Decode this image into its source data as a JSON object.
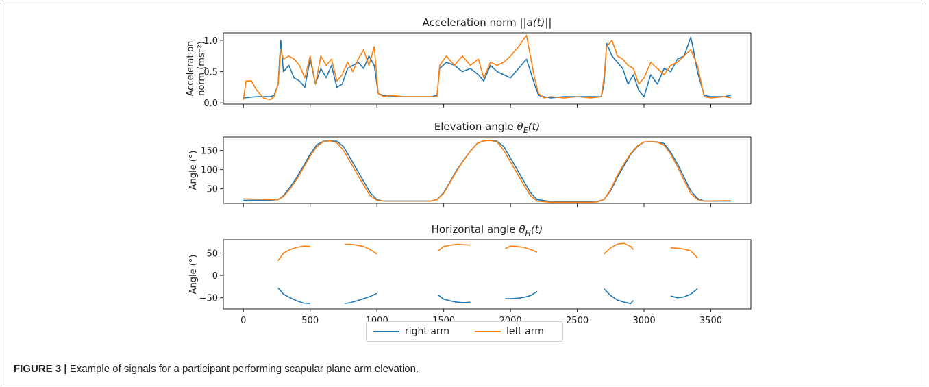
{
  "caption": {
    "label": "FIGURE 3 |",
    "text": " Example of signals for a participant performing scapular plane arm elevation."
  },
  "legend": {
    "position": "lower-center",
    "items": [
      {
        "name": "right arm",
        "color": "#1f77b4"
      },
      {
        "name": "left arm",
        "color": "#ff7f0e"
      }
    ]
  },
  "chart_data": [
    {
      "type": "line",
      "title": "Acceleration norm ||a(t)||",
      "ylabel_line1": "Acceleration",
      "ylabel_line2": "norm (ms⁻²)",
      "xlim": [
        -150,
        3800
      ],
      "ylim": [
        -0.02,
        1.12
      ],
      "yticks": [
        0.0,
        0.5,
        1.0
      ],
      "ytick_labels": [
        "0.0",
        "0.5",
        "1.0"
      ],
      "x_tick_labels_shown": false,
      "grid": false,
      "series": [
        {
          "name": "right arm",
          "color": "#1f77b4",
          "x": [
            0,
            100,
            200,
            230,
            260,
            280,
            300,
            340,
            380,
            420,
            460,
            500,
            540,
            580,
            620,
            660,
            700,
            740,
            780,
            820,
            860,
            900,
            940,
            980,
            1010,
            1050,
            1100,
            1200,
            1300,
            1400,
            1450,
            1470,
            1520,
            1580,
            1640,
            1700,
            1760,
            1800,
            1850,
            1900,
            1950,
            2000,
            2060,
            2120,
            2180,
            2210,
            2250,
            2300,
            2400,
            2500,
            2600,
            2680,
            2700,
            2720,
            2760,
            2800,
            2840,
            2880,
            2920,
            2960,
            3000,
            3050,
            3100,
            3150,
            3200,
            3250,
            3300,
            3350,
            3370,
            3400,
            3450,
            3500,
            3600,
            3650
          ],
          "y": [
            0.08,
            0.1,
            0.1,
            0.12,
            0.3,
            1.0,
            0.5,
            0.6,
            0.4,
            0.35,
            0.25,
            0.7,
            0.3,
            0.55,
            0.4,
            0.6,
            0.25,
            0.3,
            0.55,
            0.6,
            0.65,
            0.55,
            0.75,
            0.6,
            0.15,
            0.12,
            0.1,
            0.1,
            0.1,
            0.1,
            0.12,
            0.55,
            0.65,
            0.6,
            0.5,
            0.55,
            0.45,
            0.35,
            0.6,
            0.5,
            0.45,
            0.4,
            0.55,
            0.7,
            0.3,
            0.12,
            0.1,
            0.08,
            0.1,
            0.1,
            0.1,
            0.1,
            0.3,
            0.95,
            0.75,
            0.65,
            0.55,
            0.3,
            0.45,
            0.2,
            0.1,
            0.45,
            0.3,
            0.55,
            0.5,
            0.7,
            0.75,
            1.05,
            0.85,
            0.5,
            0.12,
            0.1,
            0.1,
            0.12
          ]
        },
        {
          "name": "left arm",
          "color": "#ff7f0e",
          "x": [
            0,
            20,
            60,
            100,
            150,
            200,
            230,
            260,
            280,
            300,
            340,
            380,
            420,
            460,
            500,
            540,
            580,
            620,
            660,
            700,
            740,
            780,
            820,
            860,
            900,
            940,
            980,
            1010,
            1050,
            1100,
            1200,
            1300,
            1400,
            1450,
            1470,
            1520,
            1580,
            1640,
            1700,
            1760,
            1800,
            1850,
            1900,
            1950,
            2000,
            2060,
            2120,
            2180,
            2210,
            2250,
            2300,
            2400,
            2500,
            2600,
            2680,
            2700,
            2720,
            2760,
            2800,
            2840,
            2880,
            2920,
            2960,
            3000,
            3050,
            3100,
            3150,
            3200,
            3250,
            3300,
            3350,
            3370,
            3400,
            3450,
            3500,
            3600,
            3650
          ],
          "y": [
            0.05,
            0.35,
            0.35,
            0.2,
            0.08,
            0.05,
            0.1,
            0.3,
            0.85,
            0.7,
            0.75,
            0.7,
            0.6,
            0.4,
            0.75,
            0.3,
            0.75,
            0.6,
            0.7,
            0.35,
            0.45,
            0.65,
            0.5,
            0.7,
            0.85,
            0.6,
            0.9,
            0.15,
            0.1,
            0.12,
            0.1,
            0.1,
            0.1,
            0.1,
            0.6,
            0.75,
            0.6,
            0.75,
            0.6,
            0.7,
            0.4,
            0.65,
            0.6,
            0.65,
            0.75,
            0.9,
            1.08,
            0.4,
            0.15,
            0.08,
            0.1,
            0.08,
            0.1,
            0.08,
            0.1,
            0.4,
            0.9,
            1.0,
            0.75,
            0.7,
            0.6,
            0.55,
            0.3,
            0.4,
            0.65,
            0.55,
            0.45,
            0.6,
            0.65,
            0.75,
            0.85,
            0.75,
            0.6,
            0.1,
            0.08,
            0.1,
            0.08
          ]
        }
      ]
    },
    {
      "type": "line",
      "title": "Elevation angle θE(t)",
      "ylabel": "Angle (°)",
      "xlim": [
        -150,
        3800
      ],
      "ylim": [
        12,
        185
      ],
      "yticks": [
        50,
        100,
        150
      ],
      "ytick_labels": [
        "50",
        "100",
        "150"
      ],
      "x_tick_labels_shown": false,
      "grid": false,
      "series": [
        {
          "name": "right arm",
          "color": "#1f77b4",
          "x": [
            0,
            100,
            200,
            260,
            300,
            350,
            400,
            450,
            500,
            550,
            600,
            650,
            700,
            750,
            800,
            850,
            900,
            950,
            1000,
            1050,
            1100,
            1200,
            1300,
            1400,
            1450,
            1500,
            1550,
            1600,
            1650,
            1700,
            1750,
            1800,
            1850,
            1900,
            1950,
            2000,
            2050,
            2100,
            2150,
            2200,
            2300,
            2400,
            2500,
            2600,
            2650,
            2700,
            2750,
            2800,
            2850,
            2900,
            2950,
            3000,
            3050,
            3100,
            3150,
            3200,
            3250,
            3300,
            3350,
            3400,
            3450,
            3500,
            3600,
            3650
          ],
          "y": [
            20,
            20,
            20,
            22,
            32,
            55,
            80,
            110,
            140,
            165,
            174,
            175,
            174,
            160,
            130,
            100,
            70,
            40,
            22,
            18,
            18,
            18,
            18,
            18,
            22,
            40,
            70,
            100,
            125,
            148,
            168,
            175,
            176,
            174,
            160,
            130,
            100,
            70,
            40,
            22,
            17,
            17,
            17,
            17,
            17,
            22,
            45,
            80,
            110,
            140,
            160,
            172,
            173,
            172,
            168,
            145,
            115,
            80,
            45,
            25,
            18,
            18,
            18,
            18
          ]
        },
        {
          "name": "left arm",
          "color": "#ff7f0e",
          "x": [
            0,
            100,
            200,
            260,
            300,
            350,
            400,
            450,
            500,
            550,
            600,
            650,
            700,
            750,
            800,
            850,
            900,
            950,
            1000,
            1050,
            1100,
            1200,
            1300,
            1400,
            1450,
            1500,
            1550,
            1600,
            1650,
            1700,
            1750,
            1800,
            1850,
            1900,
            1950,
            2000,
            2050,
            2100,
            2150,
            2200,
            2300,
            2400,
            2500,
            2600,
            2650,
            2700,
            2750,
            2800,
            2850,
            2900,
            2950,
            3000,
            3050,
            3100,
            3150,
            3200,
            3250,
            3300,
            3350,
            3400,
            3450,
            3500,
            3600,
            3650
          ],
          "y": [
            24,
            23,
            22,
            22,
            30,
            50,
            75,
            105,
            135,
            160,
            173,
            175,
            170,
            150,
            120,
            90,
            60,
            32,
            20,
            18,
            18,
            18,
            18,
            18,
            22,
            38,
            68,
            98,
            124,
            148,
            168,
            175,
            176,
            172,
            150,
            120,
            90,
            60,
            32,
            18,
            15,
            15,
            15,
            15,
            16,
            22,
            48,
            85,
            115,
            142,
            162,
            172,
            173,
            171,
            164,
            140,
            108,
            72,
            38,
            22,
            18,
            18,
            19,
            19
          ]
        }
      ]
    },
    {
      "type": "line",
      "title": "Horizontal angle θH(t)",
      "ylabel": "Angle (°)",
      "xlim": [
        -150,
        3800
      ],
      "ylim": [
        -75,
        80
      ],
      "yticks": [
        -50,
        0,
        50
      ],
      "ytick_labels": [
        "−50",
        "0",
        "50"
      ],
      "xticks": [
        0,
        500,
        1000,
        1500,
        2000,
        2500,
        3000,
        3500
      ],
      "xtick_labels": [
        "0",
        "500",
        "1000",
        "1500",
        "2000",
        "2500",
        "3000",
        "3500"
      ],
      "grid": false,
      "series": [
        {
          "name": "right arm",
          "color": "#1f77b4",
          "segments": [
            {
              "x": [
                260,
                300,
                350,
                400,
                450,
                500
              ],
              "y": [
                -28,
                -42,
                -50,
                -57,
                -62,
                -63
              ]
            },
            {
              "x": [
                760,
                800,
                850,
                900,
                950,
                1000
              ],
              "y": [
                -63,
                -61,
                -57,
                -52,
                -47,
                -40
              ]
            },
            {
              "x": [
                1460,
                1500,
                1550,
                1600,
                1650,
                1700
              ],
              "y": [
                -44,
                -53,
                -57,
                -60,
                -61,
                -60
              ]
            },
            {
              "x": [
                1960,
                2000,
                2050,
                2100,
                2150,
                2200
              ],
              "y": [
                -52,
                -52,
                -51,
                -49,
                -45,
                -36
              ]
            },
            {
              "x": [
                2700,
                2750,
                2800,
                2850,
                2900,
                2920
              ],
              "y": [
                -30,
                -45,
                -55,
                -60,
                -63,
                -56
              ]
            },
            {
              "x": [
                3200,
                3250,
                3300,
                3350,
                3400
              ],
              "y": [
                -46,
                -50,
                -48,
                -42,
                -30
              ]
            }
          ]
        },
        {
          "name": "left arm",
          "color": "#ff7f0e",
          "segments": [
            {
              "x": [
                260,
                300,
                350,
                400,
                450,
                500
              ],
              "y": [
                33,
                50,
                58,
                63,
                66,
                65
              ]
            },
            {
              "x": [
                760,
                800,
                850,
                900,
                950,
                1000
              ],
              "y": [
                70,
                70,
                68,
                65,
                58,
                48
              ]
            },
            {
              "x": [
                1460,
                1500,
                1550,
                1600,
                1650,
                1700
              ],
              "y": [
                55,
                65,
                68,
                70,
                69,
                68
              ]
            },
            {
              "x": [
                1960,
                2000,
                2050,
                2100,
                2150,
                2200
              ],
              "y": [
                60,
                66,
                65,
                63,
                58,
                52
              ]
            },
            {
              "x": [
                2700,
                2750,
                2800,
                2850,
                2900,
                2920
              ],
              "y": [
                48,
                62,
                70,
                72,
                65,
                58
              ]
            },
            {
              "x": [
                3200,
                3250,
                3300,
                3350,
                3400
              ],
              "y": [
                62,
                61,
                59,
                55,
                40
              ]
            }
          ]
        }
      ]
    }
  ]
}
